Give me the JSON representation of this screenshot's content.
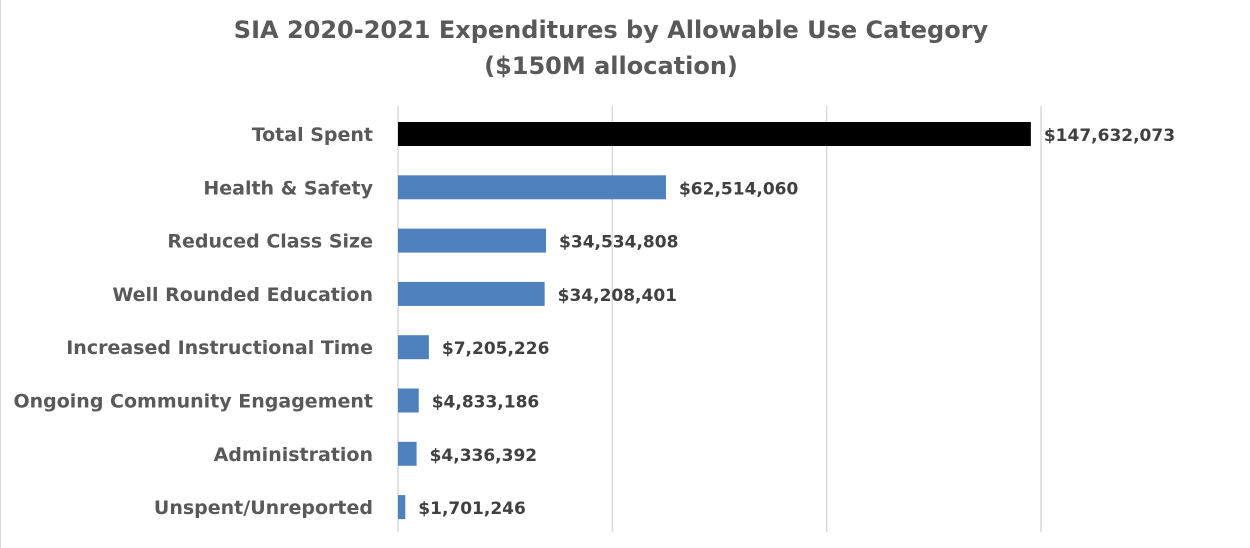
{
  "chart_data": {
    "type": "bar",
    "orientation": "horizontal",
    "title": "SIA 2020-2021 Expenditures by Allowable Use Category",
    "subtitle": "($150M allocation)",
    "categories": [
      "Total Spent",
      "Health & Safety",
      "Reduced Class Size",
      "Well Rounded Education",
      "Increased Instructional Time",
      "Ongoing Community Engagement",
      "Administration",
      "Unspent/Unreported"
    ],
    "values": [
      147632073,
      62514060,
      34534808,
      34208401,
      7205226,
      4833186,
      4336392,
      1701246
    ],
    "data_labels": [
      "$147,632,073",
      "$62,514,060",
      "$34,534,808",
      "$34,208,401",
      "$7,205,226",
      "$4,833,186",
      "$4,336,392",
      "$1,701,246"
    ],
    "bar_colors": [
      "#000000",
      "#4f81bd",
      "#4f81bd",
      "#4f81bd",
      "#4f81bd",
      "#4f81bd",
      "#4f81bd",
      "#4f81bd"
    ],
    "xlim": [
      0,
      150000000
    ],
    "gridline_values": [
      0,
      50000000,
      100000000,
      150000000
    ],
    "grid": true,
    "legend": "none",
    "xlabel": "",
    "ylabel": ""
  }
}
